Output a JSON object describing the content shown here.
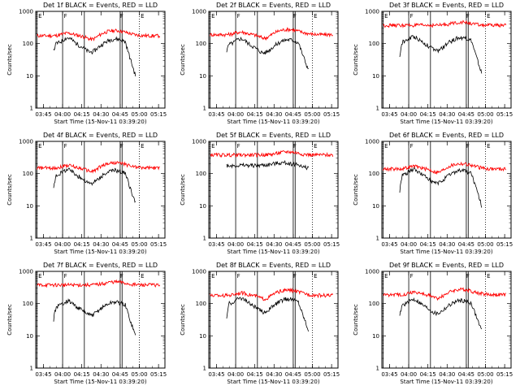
{
  "panels": [
    {
      "title": "Det 1f BLACK = Events, RED = LLD",
      "lld_level": 175,
      "evt_level": 100,
      "evt_start": 60,
      "evt_end": 10
    },
    {
      "title": "Det 2f BLACK = Events, RED = LLD",
      "lld_level": 190,
      "evt_level": 95,
      "evt_start": 60,
      "evt_end": 15
    },
    {
      "title": "Det 3f BLACK = Events, RED = LLD",
      "lld_level": 370,
      "evt_level": 110,
      "evt_start": 40,
      "evt_end": 12
    },
    {
      "title": "Det 4f BLACK = Events, RED = LLD",
      "lld_level": 150,
      "evt_level": 90,
      "evt_start": 35,
      "evt_end": 12
    },
    {
      "title": "Det 5f BLACK = Events, RED = LLD",
      "lld_level": 380,
      "evt_level": 180,
      "evt_start": 170,
      "evt_end": 140
    },
    {
      "title": "Det 6f BLACK = Events, RED = LLD",
      "lld_level": 140,
      "evt_level": 90,
      "evt_start": 30,
      "evt_end": 10
    },
    {
      "title": "Det 7f BLACK = Events, RED = LLD",
      "lld_level": 380,
      "evt_level": 80,
      "evt_start": 30,
      "evt_end": 10
    },
    {
      "title": "Det 8f BLACK = Events, RED = LLD",
      "lld_level": 180,
      "evt_level": 100,
      "evt_start": 35,
      "evt_end": 15
    },
    {
      "title": "Det 9f BLACK = Events, RED = LLD",
      "lld_level": 190,
      "evt_level": 90,
      "evt_start": 40,
      "evt_end": 15
    }
  ],
  "common": {
    "xlabel": "Start Time (15-Nov-11 03:39:20)",
    "ylabel": "Counts/sec",
    "xticks": [
      "03:45",
      "04:00",
      "04:15",
      "04:30",
      "04:45",
      "05:00",
      "05:15"
    ],
    "yticks": [
      "1",
      "10",
      "100",
      "1000"
    ],
    "markers": [
      "E",
      "F",
      "F",
      "E"
    ]
  },
  "colors": {
    "events": "#000000",
    "lld": "#ff0000"
  },
  "chart_data": {
    "type": "line",
    "x_axis": "time (UT)",
    "xlim": [
      "03:39",
      "05:20"
    ],
    "ylim": [
      1,
      1000
    ],
    "yscale": "log",
    "vertical_markers": [
      "03:40",
      "04:00",
      "04:17",
      "04:45",
      "04:46",
      "05:00"
    ],
    "series": [
      {
        "name": "BLACK = Events"
      },
      {
        "name": "RED = LLD"
      }
    ]
  }
}
